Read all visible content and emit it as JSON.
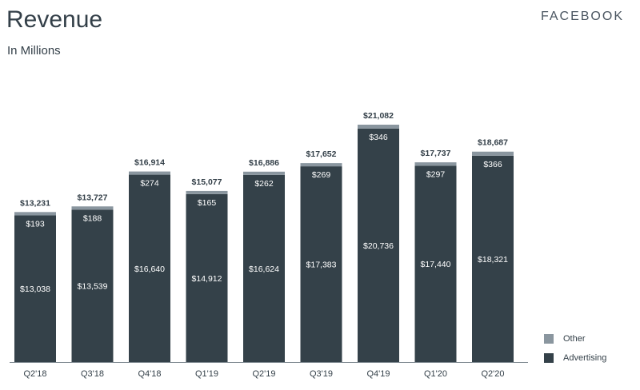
{
  "header": {
    "title": "Revenue",
    "subtitle": "In Millions",
    "brand": "FACEBOOK"
  },
  "colors": {
    "advertising": "#344149",
    "other": "#8a969f",
    "text": "#333f48",
    "axis": "#7a858d"
  },
  "legend": [
    {
      "label": "Other",
      "color": "#8a969f"
    },
    {
      "label": "Advertising",
      "color": "#344149"
    }
  ],
  "chart_data": {
    "type": "bar",
    "stacked": true,
    "title": "Revenue",
    "subtitle": "In Millions",
    "categories": [
      "Q2'18",
      "Q3'18",
      "Q4'18",
      "Q1'19",
      "Q2'19",
      "Q3'19",
      "Q4'19",
      "Q1'20",
      "Q2'20"
    ],
    "series": [
      {
        "name": "Advertising",
        "values": [
          13038,
          13539,
          16640,
          14912,
          16624,
          17383,
          20736,
          17440,
          18321
        ]
      },
      {
        "name": "Other",
        "values": [
          193,
          188,
          274,
          165,
          262,
          269,
          346,
          297,
          366
        ]
      }
    ],
    "totals": [
      13231,
      13727,
      16914,
      15077,
      16886,
      17652,
      21082,
      17737,
      18687
    ],
    "ylim": [
      0,
      22000
    ],
    "legend_position": "bottom-right",
    "grid": false
  }
}
